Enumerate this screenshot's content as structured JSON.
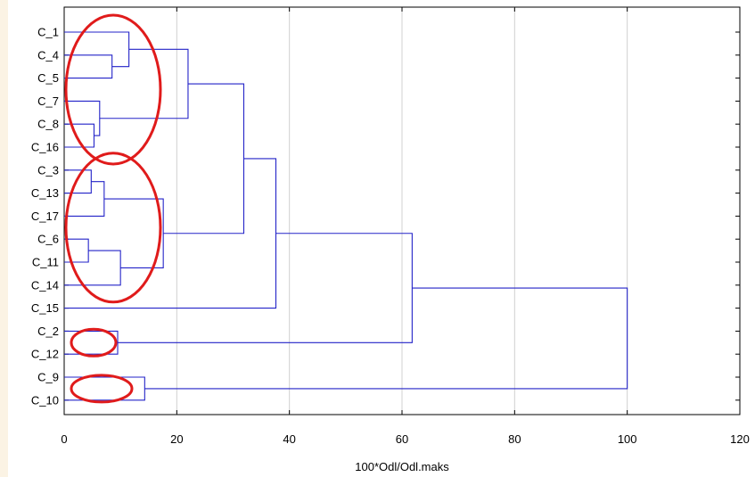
{
  "chart_data": {
    "type": "dendrogram",
    "orientation": "horizontal",
    "xlabel": "100*Odl/Odl.maks",
    "xlim": [
      0,
      120
    ],
    "xticks": [
      0,
      20,
      40,
      60,
      80,
      100,
      120
    ],
    "grid": "vertical",
    "leaves": [
      "C_1",
      "C_4",
      "C_5",
      "C_7",
      "C_8",
      "C_16",
      "C_3",
      "C_13",
      "C_17",
      "C_6",
      "C_11",
      "C_14",
      "C_15",
      "C_2",
      "C_12",
      "C_9",
      "C_10"
    ],
    "merges": [
      {
        "id": "n1",
        "left": "C_4",
        "right": "C_5",
        "height": 8.5
      },
      {
        "id": "n2",
        "left": "C_1",
        "right": "n1",
        "height": 11.5
      },
      {
        "id": "n3",
        "left": "C_8",
        "right": "C_16",
        "height": 5.3
      },
      {
        "id": "n4",
        "left": "C_7",
        "right": "n3",
        "height": 6.3
      },
      {
        "id": "n5",
        "left": "n2",
        "right": "n4",
        "height": 22.0
      },
      {
        "id": "n6",
        "left": "C_3",
        "right": "C_13",
        "height": 4.8
      },
      {
        "id": "n7",
        "left": "n6",
        "right": "C_17",
        "height": 7.1
      },
      {
        "id": "n8",
        "left": "C_6",
        "right": "C_11",
        "height": 4.3
      },
      {
        "id": "n9",
        "left": "n8",
        "right": "C_14",
        "height": 10.0
      },
      {
        "id": "n10",
        "left": "n7",
        "right": "n9",
        "height": 17.6
      },
      {
        "id": "n11",
        "left": "n5",
        "right": "n10",
        "height": 31.9
      },
      {
        "id": "n12",
        "left": "n11",
        "right": "C_15",
        "height": 37.6
      },
      {
        "id": "n13",
        "left": "C_2",
        "right": "C_12",
        "height": 9.5
      },
      {
        "id": "n14",
        "left": "n12",
        "right": "n13",
        "height": 61.8
      },
      {
        "id": "n15",
        "left": "C_9",
        "right": "C_10",
        "height": 14.3
      },
      {
        "id": "n16",
        "left": "n14",
        "right": "n15",
        "height": 100.0
      }
    ],
    "annotations": {
      "color": "#e01b1b",
      "ellipses_around_groups": [
        [
          "C_1",
          "C_4",
          "C_5",
          "C_7",
          "C_8",
          "C_16"
        ],
        [
          "C_3",
          "C_13",
          "C_17",
          "C_6",
          "C_11",
          "C_14"
        ],
        [
          "C_2",
          "C_12"
        ],
        [
          "C_9",
          "C_10"
        ]
      ]
    },
    "line_color": "#2323c8",
    "grid_color": "#d0d0d0"
  }
}
